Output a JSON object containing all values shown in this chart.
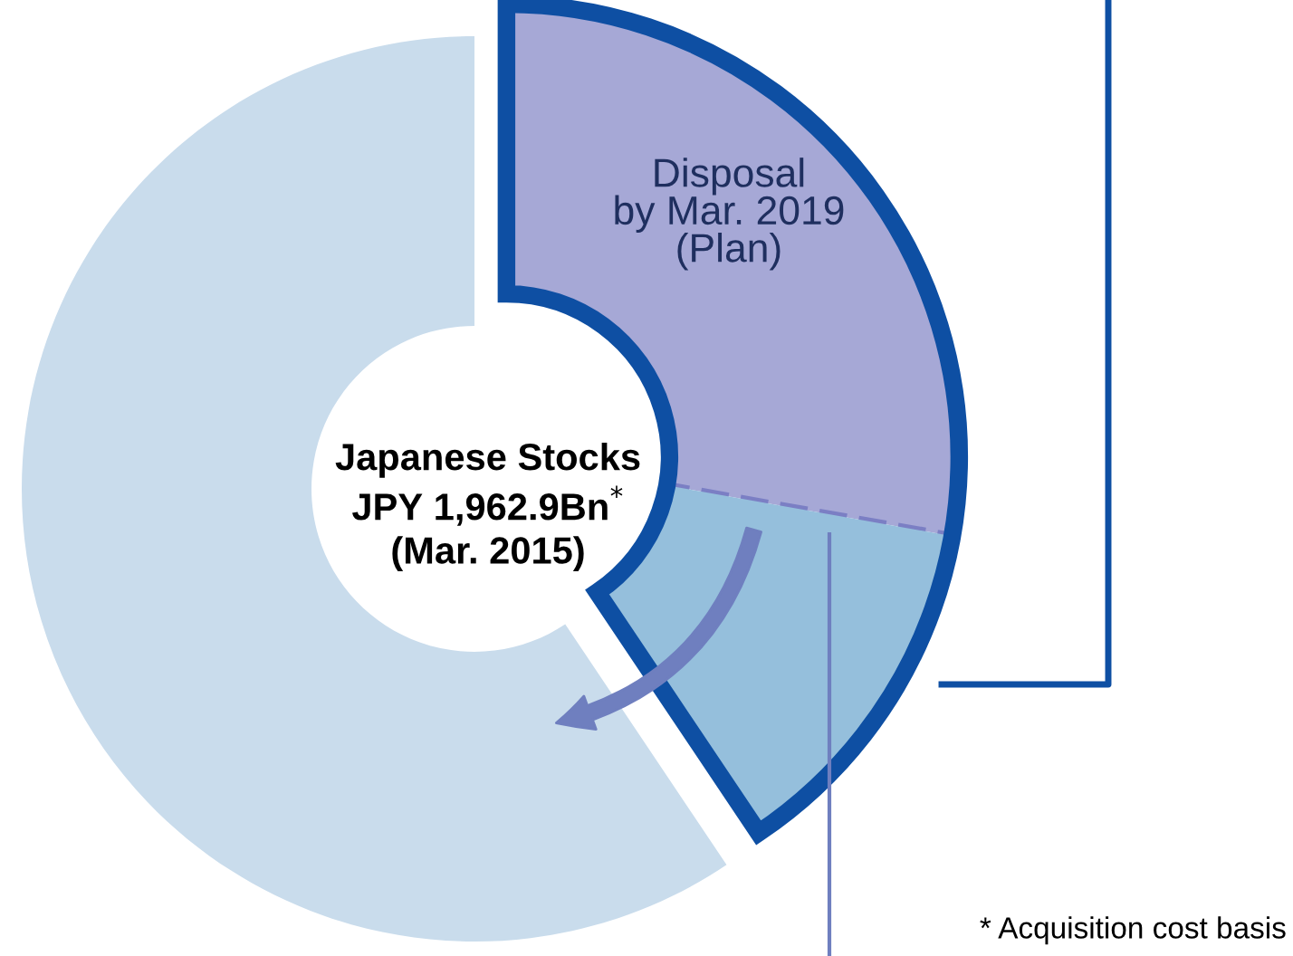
{
  "chart_data": {
    "type": "donut",
    "categories": [
      "Disposal\nby Mar. 2019\n(Plan)",
      null,
      null
    ],
    "values": [
      27.8,
      12.8,
      59.4
    ],
    "colors": [
      "#a6a8d6",
      "#95bfdc",
      "#c9dcec"
    ],
    "annotations": [
      "Japanese Stocks\nJPY 1,962.9Bn$^{*}$\n(Mar. 2015)",
      "* Acquisition cost basis"
    ]
  }
}
